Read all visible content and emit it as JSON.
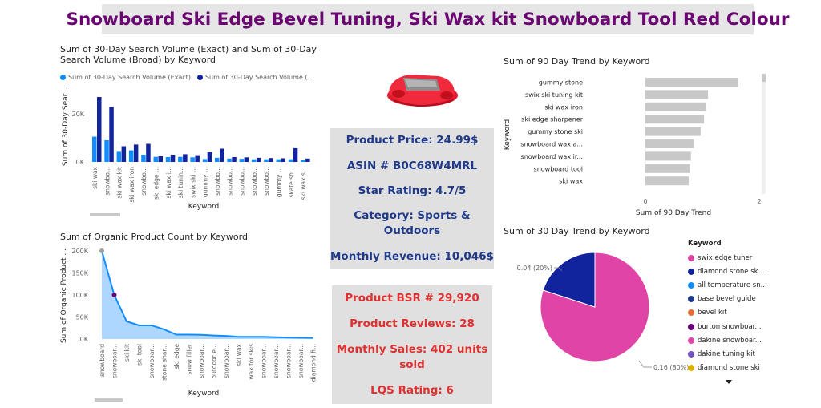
{
  "page": {
    "title": "Snowboard Ski Edge Bevel Tuning, Ski Wax kit Snowboard Tool Red Colour"
  },
  "product_panel": {
    "price": "Product Price: 24.99$",
    "asin": "ASIN # B0C68W4MRL",
    "rating": "Star Rating: 4.7/5",
    "category_line1": "Category: Sports &",
    "category_line2": "Outdoors",
    "revenue": "Monthly Revenue: 10,046$"
  },
  "sales_panel": {
    "bsr": "Product BSR #  29,920",
    "reviews": "Product Reviews:  28",
    "sales_line1": "Monthly Sales: 402 units",
    "sales_line2": "sold",
    "lqs": "LQS Rating: 6"
  },
  "colors": {
    "light_blue": "#118dff",
    "dark_blue": "#12239e",
    "pie_pink": "#e044a7",
    "pie_navy": "#12239e",
    "gray_bar": "#c8c8c8",
    "title_purple": "#6a0572"
  },
  "chart_data": [
    {
      "type": "bar",
      "title_line1": "Sum of 30-Day Search Volume (Exact) and Sum of 30-Day",
      "title_line2": "Search Volume (Broad) by Keyword",
      "xlabel": "Keyword",
      "ylabel": "Sum of 30-Day Sear...",
      "ylim": [
        0,
        30000
      ],
      "yticks": [
        "0K",
        "20K"
      ],
      "categories": [
        "ski wax",
        "snowbo...",
        "ski wax kit",
        "ski wax iron",
        "snowbo...",
        "ski edge ...",
        "ski wax i...",
        "ski tunin...",
        "swix ski ...",
        "gummy ...",
        "snowbo...",
        "snowbo...",
        "snowbo...",
        "snowbo...",
        "snowbo...",
        "gummy ...",
        "skate sh...",
        "ski wax s..."
      ],
      "series": [
        {
          "name": "Sum of 30-Day Search Volume (Exact)",
          "values": [
            10500,
            9000,
            4200,
            4800,
            3000,
            2100,
            2000,
            2100,
            1900,
            1200,
            1700,
            1400,
            1300,
            1100,
            1100,
            1100,
            1100,
            700
          ]
        },
        {
          "name": "Sum of 30-Day Search Volume (...",
          "values": [
            27000,
            23000,
            6500,
            7200,
            7500,
            2400,
            3000,
            3200,
            2800,
            4000,
            5500,
            2000,
            1900,
            1700,
            1600,
            1500,
            5700,
            1400
          ]
        }
      ]
    },
    {
      "type": "area",
      "title": "Sum of Organic Product Count by Keyword",
      "xlabel": "Keyword",
      "ylabel": "Sum of Organic Product ...",
      "ylim": [
        0,
        200000
      ],
      "yticks": [
        "0K",
        "50K",
        "100K",
        "150K",
        "200K"
      ],
      "categories": [
        "snowboard",
        "snowboar...",
        "ski kit",
        "ski tool",
        "snowboar...",
        "stone shar...",
        "ski edge",
        "snow filler",
        "snowboar...",
        "outdoor e...",
        "snowboar...",
        "ski wax",
        "wax for skis",
        "snowboar...",
        "snowboar...",
        "snowboar...",
        "snowboar...",
        "diamond fi..."
      ],
      "values": [
        200000,
        100000,
        40000,
        31000,
        31000,
        22000,
        10000,
        10000,
        9500,
        8000,
        7000,
        5000,
        5000,
        5000,
        4000,
        3500,
        3000,
        2500
      ]
    },
    {
      "type": "bar",
      "orientation": "horizontal",
      "title": "Sum of 90 Day Trend by Keyword",
      "xlabel": "Sum of 90 Day Trend",
      "ylabel": "Keyword",
      "xlim": [
        0,
        2
      ],
      "xticks": [
        "0",
        "2"
      ],
      "categories": [
        "gummy stone",
        "swix ski tuning kit",
        "ski wax iron",
        "ski edge sharpener",
        "gummy stone ski",
        "snowboard wax a...",
        "snowboard wax ir...",
        "snowboard tool",
        "ski wax"
      ],
      "values": [
        1.63,
        1.1,
        1.06,
        1.03,
        0.97,
        0.85,
        0.8,
        0.78,
        0.76
      ]
    },
    {
      "type": "pie",
      "title": "Sum of 30 Day Trend by Keyword",
      "legend_title": "Keyword",
      "slices": [
        {
          "label": "swix edge tuner",
          "value": 0.16,
          "data_label": "0.16 (80%)",
          "color": "#e044a7"
        },
        {
          "label": "diamond stone sk...",
          "value": 0.04,
          "data_label": "0.04 (20%)",
          "color": "#12239e"
        }
      ],
      "legend": [
        {
          "label": "swix edge tuner",
          "color": "#e044a7"
        },
        {
          "label": "diamond stone sk...",
          "color": "#12239e"
        },
        {
          "label": "all temperature sn...",
          "color": "#118dff"
        },
        {
          "label": "base bevel guide",
          "color": "#1f3a8a"
        },
        {
          "label": "bevel kit",
          "color": "#e66c37"
        },
        {
          "label": "burton snowboar...",
          "color": "#6b007b"
        },
        {
          "label": "dakine snowboar...",
          "color": "#e044a7"
        },
        {
          "label": "dakine tuning kit",
          "color": "#744ec2"
        },
        {
          "label": "diamond stone ski",
          "color": "#d9b300"
        }
      ]
    }
  ]
}
